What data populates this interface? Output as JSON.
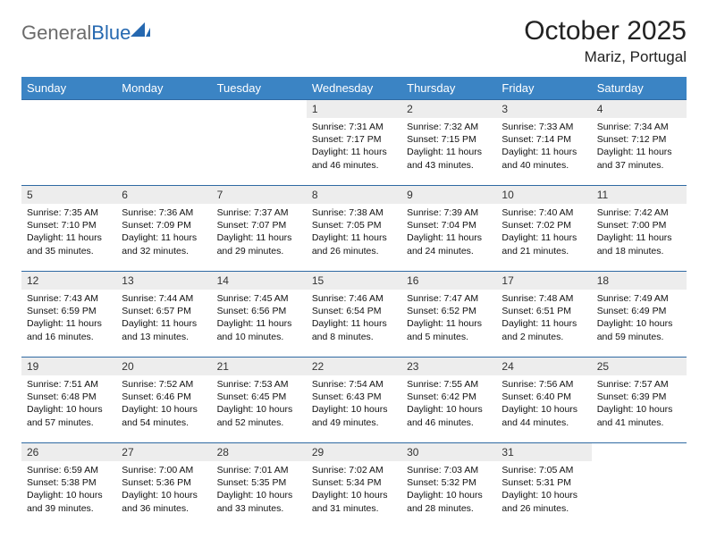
{
  "logo": {
    "text_gray": "General",
    "text_blue": "Blue"
  },
  "title": "October 2025",
  "location": "Mariz, Portugal",
  "colors": {
    "header_bg": "#3b84c4",
    "daynum_bg": "#ededed",
    "rule": "#2f6aa3",
    "logo_gray": "#6b6b6b",
    "logo_blue": "#2568b0"
  },
  "day_headers": [
    "Sunday",
    "Monday",
    "Tuesday",
    "Wednesday",
    "Thursday",
    "Friday",
    "Saturday"
  ],
  "weeks": [
    [
      {
        "num": "",
        "sunrise": "",
        "sunset": "",
        "daylight": ""
      },
      {
        "num": "",
        "sunrise": "",
        "sunset": "",
        "daylight": ""
      },
      {
        "num": "",
        "sunrise": "",
        "sunset": "",
        "daylight": ""
      },
      {
        "num": "1",
        "sunrise": "Sunrise: 7:31 AM",
        "sunset": "Sunset: 7:17 PM",
        "daylight": "Daylight: 11 hours and 46 minutes."
      },
      {
        "num": "2",
        "sunrise": "Sunrise: 7:32 AM",
        "sunset": "Sunset: 7:15 PM",
        "daylight": "Daylight: 11 hours and 43 minutes."
      },
      {
        "num": "3",
        "sunrise": "Sunrise: 7:33 AM",
        "sunset": "Sunset: 7:14 PM",
        "daylight": "Daylight: 11 hours and 40 minutes."
      },
      {
        "num": "4",
        "sunrise": "Sunrise: 7:34 AM",
        "sunset": "Sunset: 7:12 PM",
        "daylight": "Daylight: 11 hours and 37 minutes."
      }
    ],
    [
      {
        "num": "5",
        "sunrise": "Sunrise: 7:35 AM",
        "sunset": "Sunset: 7:10 PM",
        "daylight": "Daylight: 11 hours and 35 minutes."
      },
      {
        "num": "6",
        "sunrise": "Sunrise: 7:36 AM",
        "sunset": "Sunset: 7:09 PM",
        "daylight": "Daylight: 11 hours and 32 minutes."
      },
      {
        "num": "7",
        "sunrise": "Sunrise: 7:37 AM",
        "sunset": "Sunset: 7:07 PM",
        "daylight": "Daylight: 11 hours and 29 minutes."
      },
      {
        "num": "8",
        "sunrise": "Sunrise: 7:38 AM",
        "sunset": "Sunset: 7:05 PM",
        "daylight": "Daylight: 11 hours and 26 minutes."
      },
      {
        "num": "9",
        "sunrise": "Sunrise: 7:39 AM",
        "sunset": "Sunset: 7:04 PM",
        "daylight": "Daylight: 11 hours and 24 minutes."
      },
      {
        "num": "10",
        "sunrise": "Sunrise: 7:40 AM",
        "sunset": "Sunset: 7:02 PM",
        "daylight": "Daylight: 11 hours and 21 minutes."
      },
      {
        "num": "11",
        "sunrise": "Sunrise: 7:42 AM",
        "sunset": "Sunset: 7:00 PM",
        "daylight": "Daylight: 11 hours and 18 minutes."
      }
    ],
    [
      {
        "num": "12",
        "sunrise": "Sunrise: 7:43 AM",
        "sunset": "Sunset: 6:59 PM",
        "daylight": "Daylight: 11 hours and 16 minutes."
      },
      {
        "num": "13",
        "sunrise": "Sunrise: 7:44 AM",
        "sunset": "Sunset: 6:57 PM",
        "daylight": "Daylight: 11 hours and 13 minutes."
      },
      {
        "num": "14",
        "sunrise": "Sunrise: 7:45 AM",
        "sunset": "Sunset: 6:56 PM",
        "daylight": "Daylight: 11 hours and 10 minutes."
      },
      {
        "num": "15",
        "sunrise": "Sunrise: 7:46 AM",
        "sunset": "Sunset: 6:54 PM",
        "daylight": "Daylight: 11 hours and 8 minutes."
      },
      {
        "num": "16",
        "sunrise": "Sunrise: 7:47 AM",
        "sunset": "Sunset: 6:52 PM",
        "daylight": "Daylight: 11 hours and 5 minutes."
      },
      {
        "num": "17",
        "sunrise": "Sunrise: 7:48 AM",
        "sunset": "Sunset: 6:51 PM",
        "daylight": "Daylight: 11 hours and 2 minutes."
      },
      {
        "num": "18",
        "sunrise": "Sunrise: 7:49 AM",
        "sunset": "Sunset: 6:49 PM",
        "daylight": "Daylight: 10 hours and 59 minutes."
      }
    ],
    [
      {
        "num": "19",
        "sunrise": "Sunrise: 7:51 AM",
        "sunset": "Sunset: 6:48 PM",
        "daylight": "Daylight: 10 hours and 57 minutes."
      },
      {
        "num": "20",
        "sunrise": "Sunrise: 7:52 AM",
        "sunset": "Sunset: 6:46 PM",
        "daylight": "Daylight: 10 hours and 54 minutes."
      },
      {
        "num": "21",
        "sunrise": "Sunrise: 7:53 AM",
        "sunset": "Sunset: 6:45 PM",
        "daylight": "Daylight: 10 hours and 52 minutes."
      },
      {
        "num": "22",
        "sunrise": "Sunrise: 7:54 AM",
        "sunset": "Sunset: 6:43 PM",
        "daylight": "Daylight: 10 hours and 49 minutes."
      },
      {
        "num": "23",
        "sunrise": "Sunrise: 7:55 AM",
        "sunset": "Sunset: 6:42 PM",
        "daylight": "Daylight: 10 hours and 46 minutes."
      },
      {
        "num": "24",
        "sunrise": "Sunrise: 7:56 AM",
        "sunset": "Sunset: 6:40 PM",
        "daylight": "Daylight: 10 hours and 44 minutes."
      },
      {
        "num": "25",
        "sunrise": "Sunrise: 7:57 AM",
        "sunset": "Sunset: 6:39 PM",
        "daylight": "Daylight: 10 hours and 41 minutes."
      }
    ],
    [
      {
        "num": "26",
        "sunrise": "Sunrise: 6:59 AM",
        "sunset": "Sunset: 5:38 PM",
        "daylight": "Daylight: 10 hours and 39 minutes."
      },
      {
        "num": "27",
        "sunrise": "Sunrise: 7:00 AM",
        "sunset": "Sunset: 5:36 PM",
        "daylight": "Daylight: 10 hours and 36 minutes."
      },
      {
        "num": "28",
        "sunrise": "Sunrise: 7:01 AM",
        "sunset": "Sunset: 5:35 PM",
        "daylight": "Daylight: 10 hours and 33 minutes."
      },
      {
        "num": "29",
        "sunrise": "Sunrise: 7:02 AM",
        "sunset": "Sunset: 5:34 PM",
        "daylight": "Daylight: 10 hours and 31 minutes."
      },
      {
        "num": "30",
        "sunrise": "Sunrise: 7:03 AM",
        "sunset": "Sunset: 5:32 PM",
        "daylight": "Daylight: 10 hours and 28 minutes."
      },
      {
        "num": "31",
        "sunrise": "Sunrise: 7:05 AM",
        "sunset": "Sunset: 5:31 PM",
        "daylight": "Daylight: 10 hours and 26 minutes."
      },
      {
        "num": "",
        "sunrise": "",
        "sunset": "",
        "daylight": ""
      }
    ]
  ]
}
